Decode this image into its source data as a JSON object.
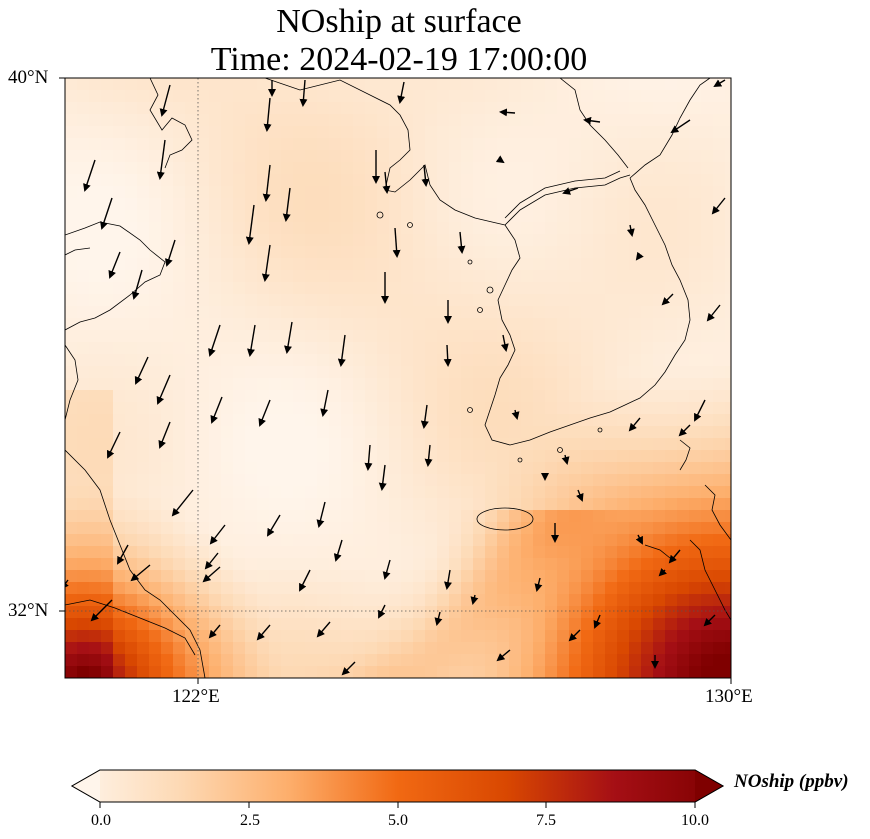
{
  "title": {
    "line1": "NOship at surface",
    "line2": "Time: 2024-02-19 17:00:00"
  },
  "axes": {
    "lat_labels": [
      "40°N",
      "32°N"
    ],
    "lon_labels": [
      "122°E",
      "130°E"
    ],
    "lat_range": [
      31,
      40
    ],
    "lon_range": [
      120,
      130
    ],
    "gridlines": "dotted at 122°E and 32°N"
  },
  "colorbar": {
    "label": "NOship (ppbv)",
    "ticks": [
      "0.0",
      "2.5",
      "5.0",
      "7.5",
      "10.0"
    ],
    "range": [
      0,
      10
    ],
    "colormap": [
      "#fff5eb",
      "#fdd9b4",
      "#fdae6b",
      "#f16913",
      "#d94801",
      "#a50f15",
      "#7f0000"
    ],
    "extend": "both"
  },
  "map": {
    "region": "Yellow Sea / Korean Peninsula",
    "wind_vectors": "black arrows showing wind direction, predominantly from north/northwest",
    "high_concentration_areas": [
      "southeast corner near Korea Strait / Japan",
      "southwest corner near Yangtze estuary"
    ]
  }
}
